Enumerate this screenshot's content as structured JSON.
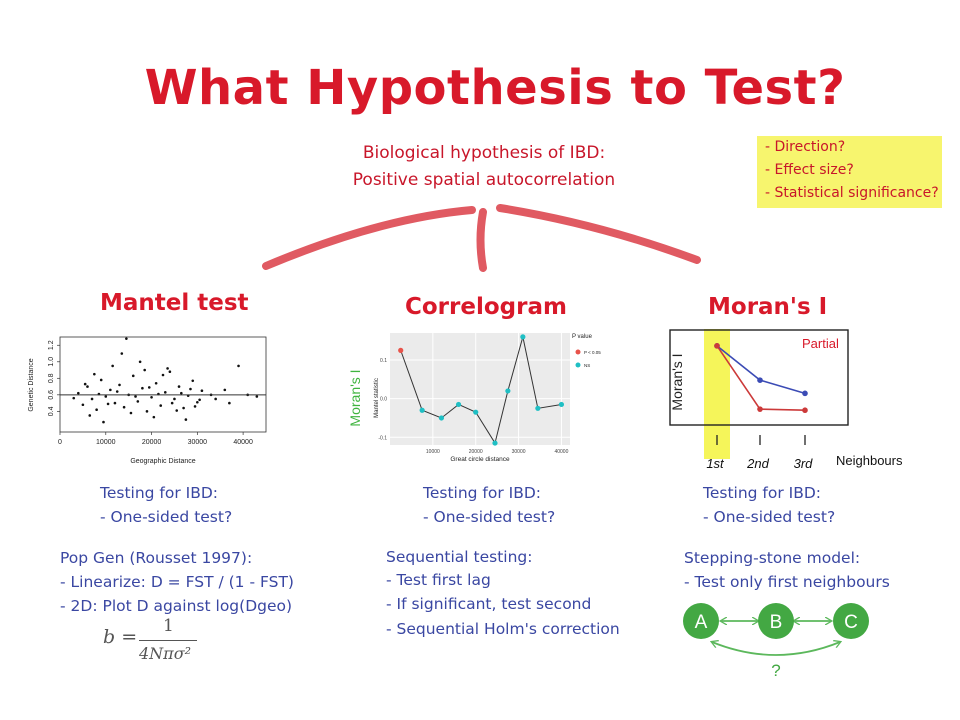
{
  "title": "What Hypothesis to Test?",
  "hypothesis": {
    "line1": "Biological hypothesis of IBD:",
    "line2": "Positive spatial autocorrelation"
  },
  "questions": [
    "- Direction?",
    "- Effect size?",
    "- Statistical significance?"
  ],
  "columns": {
    "mantel": {
      "heading": "Mantel test",
      "testing": [
        "Testing for IBD:",
        "- One-sided test?"
      ],
      "notes": [
        "Pop Gen (Rousset 1997):",
        "- Linearize: D = FST / (1 - FST)",
        "- 2D: Plot D against log(Dgeo)"
      ],
      "formula": {
        "lhs": "b =",
        "num": "1",
        "den": "4Nπσ²"
      }
    },
    "correlogram": {
      "heading": "Correlogram",
      "testing": [
        "Testing for IBD:",
        "- One-sided test?"
      ],
      "notes": [
        "Sequential testing:",
        "- Test first lag",
        "- If significant, test second",
        "- Sequential Holm's correction"
      ]
    },
    "moran": {
      "heading": "Moran's I",
      "testing": [
        "Testing for IBD:",
        "- One-sided test?"
      ],
      "notes": [
        "Stepping-stone model:",
        "- Test only first neighbours"
      ],
      "nodes": [
        "A",
        "B",
        "C"
      ],
      "question_mark": "?"
    }
  },
  "chart_data": [
    {
      "type": "scatter",
      "xlabel": "Geographic Distance",
      "ylabel": "Genetic Distance",
      "xlim": [
        0,
        45000
      ],
      "ylim": [
        0.15,
        1.3
      ],
      "xticks": [
        "0",
        "10000",
        "20000",
        "30000",
        "40000"
      ],
      "yticks": [
        "0.4",
        "0.6",
        "0.8",
        "1.0",
        "1.2"
      ],
      "fit_line": {
        "y": 0.6
      },
      "points": [
        [
          4000,
          0.62
        ],
        [
          5000,
          0.48
        ],
        [
          6000,
          0.7
        ],
        [
          7000,
          0.55
        ],
        [
          8000,
          0.42
        ],
        [
          9000,
          0.78
        ],
        [
          10000,
          0.58
        ],
        [
          11000,
          0.66
        ],
        [
          12000,
          0.5
        ],
        [
          13000,
          0.72
        ],
        [
          14000,
          0.45
        ],
        [
          15000,
          0.6
        ],
        [
          16000,
          0.83
        ],
        [
          17000,
          0.52
        ],
        [
          18000,
          0.68
        ],
        [
          19000,
          0.4
        ],
        [
          20000,
          0.57
        ],
        [
          21000,
          0.74
        ],
        [
          22000,
          0.47
        ],
        [
          23000,
          0.63
        ],
        [
          24000,
          0.88
        ],
        [
          25000,
          0.55
        ],
        [
          26000,
          0.7
        ],
        [
          27000,
          0.44
        ],
        [
          28000,
          0.59
        ],
        [
          29000,
          0.77
        ],
        [
          30000,
          0.51
        ],
        [
          31000,
          0.65
        ],
        [
          6500,
          0.35
        ],
        [
          11500,
          0.95
        ],
        [
          17500,
          1.0
        ],
        [
          23500,
          0.92
        ],
        [
          27500,
          0.3
        ],
        [
          9500,
          0.27
        ],
        [
          13500,
          1.1
        ],
        [
          20500,
          0.33
        ],
        [
          15500,
          0.38
        ],
        [
          18500,
          0.9
        ],
        [
          12500,
          0.64
        ],
        [
          24500,
          0.5
        ],
        [
          7500,
          0.85
        ],
        [
          26500,
          0.62
        ],
        [
          3000,
          0.56
        ],
        [
          5500,
          0.73
        ],
        [
          21500,
          0.61
        ],
        [
          29500,
          0.46
        ],
        [
          33000,
          0.6
        ],
        [
          34000,
          0.55
        ],
        [
          36000,
          0.66
        ],
        [
          37000,
          0.5
        ],
        [
          39000,
          0.95
        ],
        [
          41000,
          0.6
        ],
        [
          43000,
          0.58
        ],
        [
          14500,
          1.28
        ],
        [
          19500,
          0.69
        ],
        [
          16500,
          0.58
        ],
        [
          10500,
          0.49
        ],
        [
          8500,
          0.61
        ],
        [
          22500,
          0.84
        ],
        [
          25500,
          0.41
        ],
        [
          28500,
          0.67
        ],
        [
          30500,
          0.54
        ]
      ]
    },
    {
      "type": "line",
      "xlabel": "Great circle distance",
      "ylabel": "Mantel statistic",
      "outer_ylabel": "Moran's I",
      "xlim": [
        0,
        42000
      ],
      "ylim": [
        -0.12,
        0.17
      ],
      "xticks": [
        10000,
        20000,
        30000,
        40000
      ],
      "yticks": [
        -0.1,
        0.0,
        0.1
      ],
      "legend": {
        "title": "P value",
        "entries": [
          {
            "label": "P < 0.05",
            "color": "#e8534a"
          },
          {
            "label": "NS",
            "color": "#1fbfc4"
          }
        ]
      },
      "x": [
        2500,
        7500,
        12000,
        16000,
        20000,
        24500,
        27500,
        31000,
        34500,
        40000
      ],
      "y": [
        0.125,
        -0.03,
        -0.05,
        -0.015,
        -0.035,
        -0.115,
        0.02,
        0.16,
        -0.025,
        -0.015
      ],
      "significant": [
        true,
        false,
        false,
        false,
        false,
        false,
        false,
        false,
        false,
        false
      ]
    },
    {
      "type": "line",
      "ylabel": "Moran's I",
      "annotation": "Partial",
      "categories": [
        "1st",
        "2nd",
        "3rd"
      ],
      "xlabel_right": "Neighbours",
      "series": [
        {
          "values": [
            1.0,
            0.35,
            0.1
          ],
          "color": "#3b4bb5"
        },
        {
          "values": [
            1.0,
            -0.2,
            -0.22
          ],
          "color": "#cc3a3a"
        }
      ],
      "ylim": [
        -0.5,
        1.3
      ]
    }
  ]
}
